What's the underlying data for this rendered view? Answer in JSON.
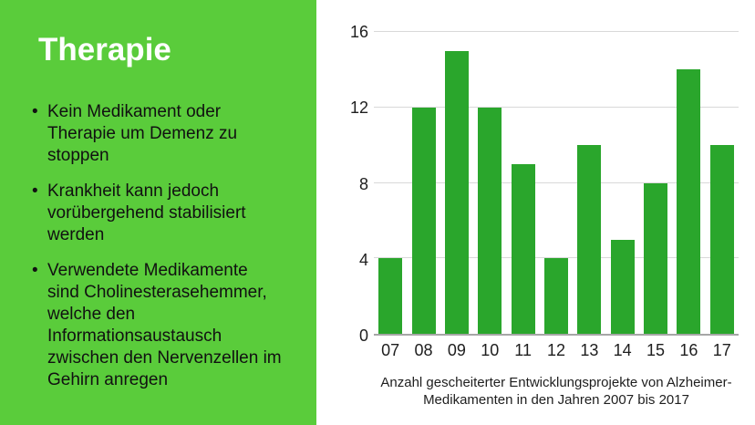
{
  "slide": {
    "title": "Therapie",
    "bullets": [
      "Kein Medikament oder\nTherapie um Demenz zu\nstoppen",
      "Krankheit kann jedoch\nvorübergehend stabilisiert\nwerden",
      "Verwendete Medikamente\nsind Cholinesterasehemmer,\nwelche den\nInformationsaustausch\nzwischen den Nervenzellen im\nGehirn anregen"
    ]
  },
  "chart_data": {
    "type": "bar",
    "categories": [
      "07",
      "08",
      "09",
      "10",
      "11",
      "12",
      "13",
      "14",
      "15",
      "16",
      "17"
    ],
    "values": [
      4,
      12,
      15,
      12,
      9,
      4,
      10,
      5,
      8,
      14,
      10
    ],
    "title": "",
    "xlabel": "",
    "ylabel": "",
    "ylim": [
      0,
      16
    ],
    "yticks": [
      0,
      4,
      8,
      12,
      16
    ],
    "grid": true,
    "legend_position": "none",
    "caption": "Anzahl gescheiterter Entwicklungsprojekte von Alzheimer-\nMedikamenten in den Jahren 2007 bis 2017"
  },
  "colors": {
    "panel_green": "#5ACC3B",
    "bar_green": "#2AA62C",
    "gridline": "#D9D9D9",
    "axis_line": "#A6A6A6",
    "text_dark": "#1E1E1E",
    "title_white": "#FFFFFF",
    "bullet_text": "#111111"
  }
}
